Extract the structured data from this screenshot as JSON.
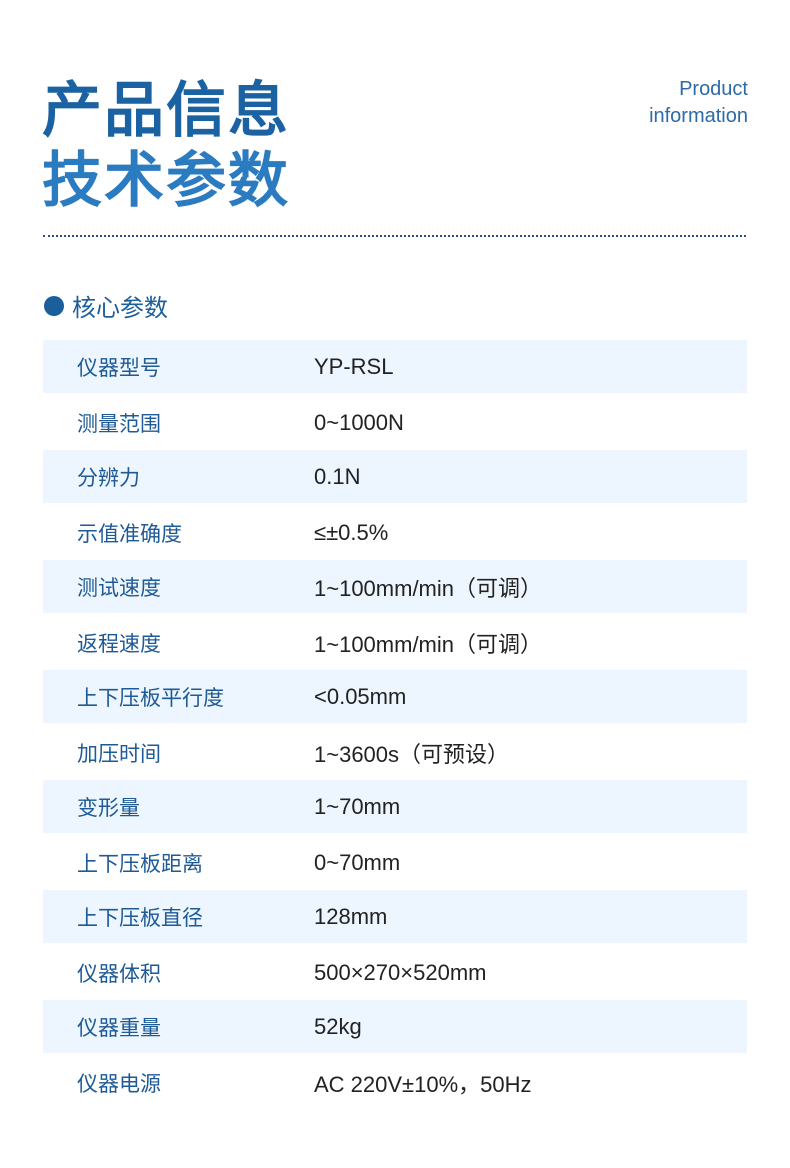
{
  "header": {
    "title_line1": "产品信息",
    "title_line2": "技术参数",
    "en_line1": "Product",
    "en_line2": "information"
  },
  "section": {
    "title": "核心参数"
  },
  "colors": {
    "primary": "#1b5e9c",
    "row_shade": "#edf5fe"
  },
  "params": [
    {
      "label": "仪器型号",
      "value": "YP-RSL"
    },
    {
      "label": "测量范围",
      "value": "0~1000N"
    },
    {
      "label": "分辨力",
      "value": "0.1N"
    },
    {
      "label": "示值准确度",
      "value": "≤±0.5%"
    },
    {
      "label": "测试速度",
      "value": "1~100mm/min（可调）"
    },
    {
      "label": "返程速度",
      "value": "1~100mm/min（可调）"
    },
    {
      "label": "上下压板平行度",
      "value": "<0.05mm"
    },
    {
      "label": "加压时间",
      "value": "1~3600s（可预设）"
    },
    {
      "label": "变形量",
      "value": "1~70mm"
    },
    {
      "label": "上下压板距离",
      "value": "0~70mm"
    },
    {
      "label": "上下压板直径",
      "value": "128mm"
    },
    {
      "label": "仪器体积",
      "value": "500×270×520mm"
    },
    {
      "label": "仪器重量",
      "value": "52kg"
    },
    {
      "label": "仪器电源",
      "value": "AC 220V±10%，50Hz"
    }
  ]
}
